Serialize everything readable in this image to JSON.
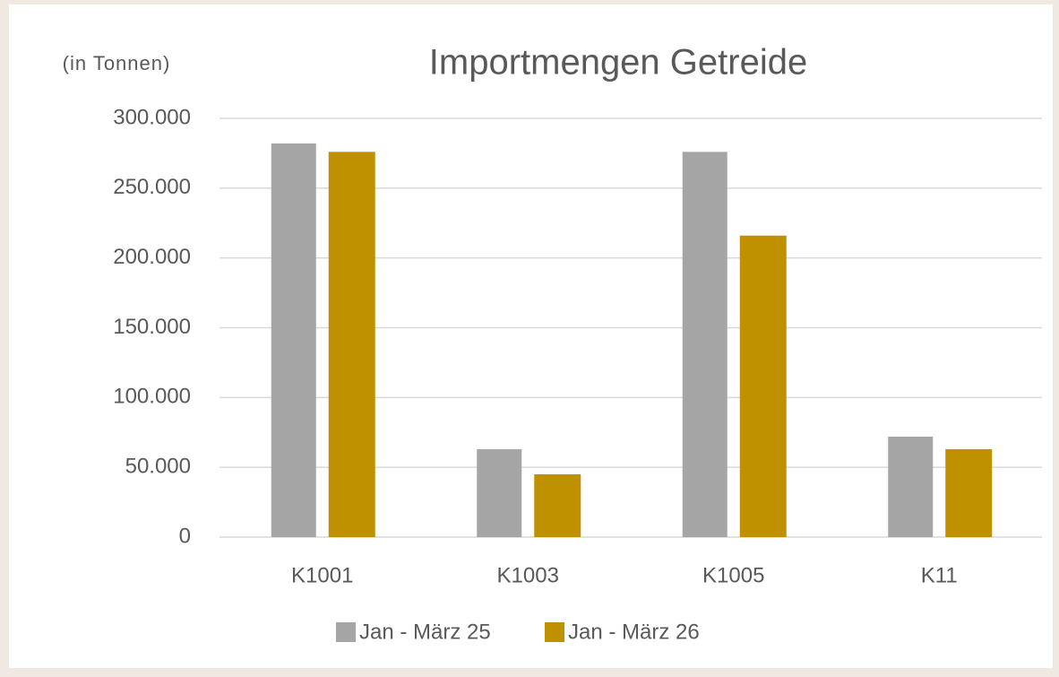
{
  "chart_data": {
    "type": "bar",
    "title": "Importmengen Getreide",
    "y_label": "(in Tonnen)",
    "categories": [
      "K1001",
      "K1003",
      "K1005",
      "K11"
    ],
    "series": [
      {
        "name": "Jan - März 25",
        "color": "#a5a5a5",
        "values": [
          282000,
          63000,
          276000,
          72000
        ]
      },
      {
        "name": "Jan - März 26",
        "color": "#bf9000",
        "values": [
          276000,
          45000,
          216000,
          63000
        ]
      }
    ],
    "ylim": [
      0,
      300000
    ],
    "yticks": [
      0,
      {
        "value": 50000,
        "label": "50.000"
      },
      {
        "value": 100000,
        "label": "100.000"
      },
      {
        "value": 150000,
        "label": "150.000"
      },
      {
        "value": 200000,
        "label": "200.000"
      },
      {
        "value": 250000,
        "label": "250.000"
      },
      {
        "value": 300000,
        "label": "300.000"
      }
    ],
    "grid": true,
    "legend": "bottom"
  }
}
